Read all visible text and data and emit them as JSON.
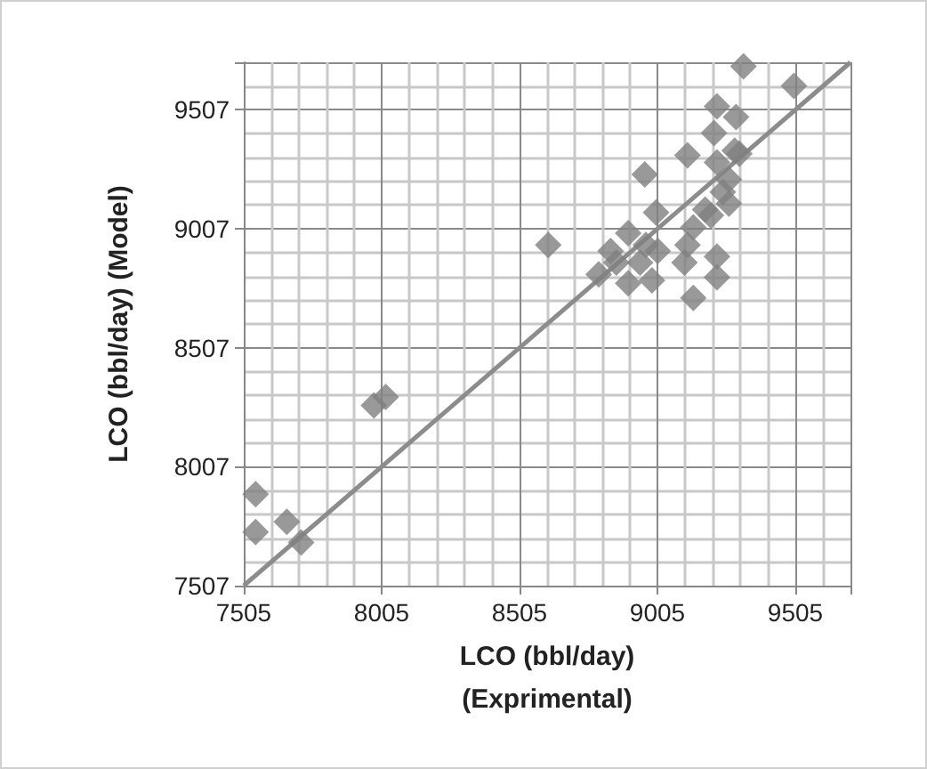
{
  "chart_data": {
    "type": "scatter",
    "xlabel": "LCO (bbl/day)\n(Exprimental)",
    "ylabel": "LCO (bbl/day) (Model)",
    "xlim": [
      7505,
      9705
    ],
    "ylim": [
      7507,
      9707
    ],
    "xticks": [
      7505,
      8005,
      8505,
      9005,
      9505
    ],
    "yticks": [
      7507,
      8007,
      8507,
      9007,
      9507
    ],
    "grid": true,
    "marker": "diamond",
    "series": [
      {
        "color": "#7f7f7f",
        "x": [
          7548,
          7548,
          7661,
          7713,
          7977,
          8020,
          8609,
          9317,
          9500,
          9221,
          9290,
          9210,
          9114,
          8959,
          9302,
          9135,
          9221,
          9221,
          9103,
          9000,
          8792,
          8835,
          8899,
          8899,
          8985,
          9006,
          8856,
          8942,
          8963,
          9178,
          9242,
          9264,
          9135,
          9199,
          9114,
          9264,
          9221,
          9285
        ],
        "values": [
          7891,
          7732,
          7775,
          7688,
          8265,
          8300,
          8939,
          9690,
          9608,
          9522,
          9477,
          9410,
          9316,
          9236,
          9323,
          8716,
          8803,
          8890,
          8865,
          9076,
          8816,
          8914,
          8989,
          8778,
          8790,
          8914,
          8865,
          8865,
          8939,
          9088,
          9162,
          9214,
          9013,
          9063,
          8939,
          9113,
          9286,
          9336
        ]
      },
      {
        "type": "line",
        "color": "#8c8c8c",
        "marker": "none",
        "line_style": "solid",
        "x": [
          7505,
          9705
        ],
        "values": [
          7507,
          9707
        ]
      }
    ]
  }
}
